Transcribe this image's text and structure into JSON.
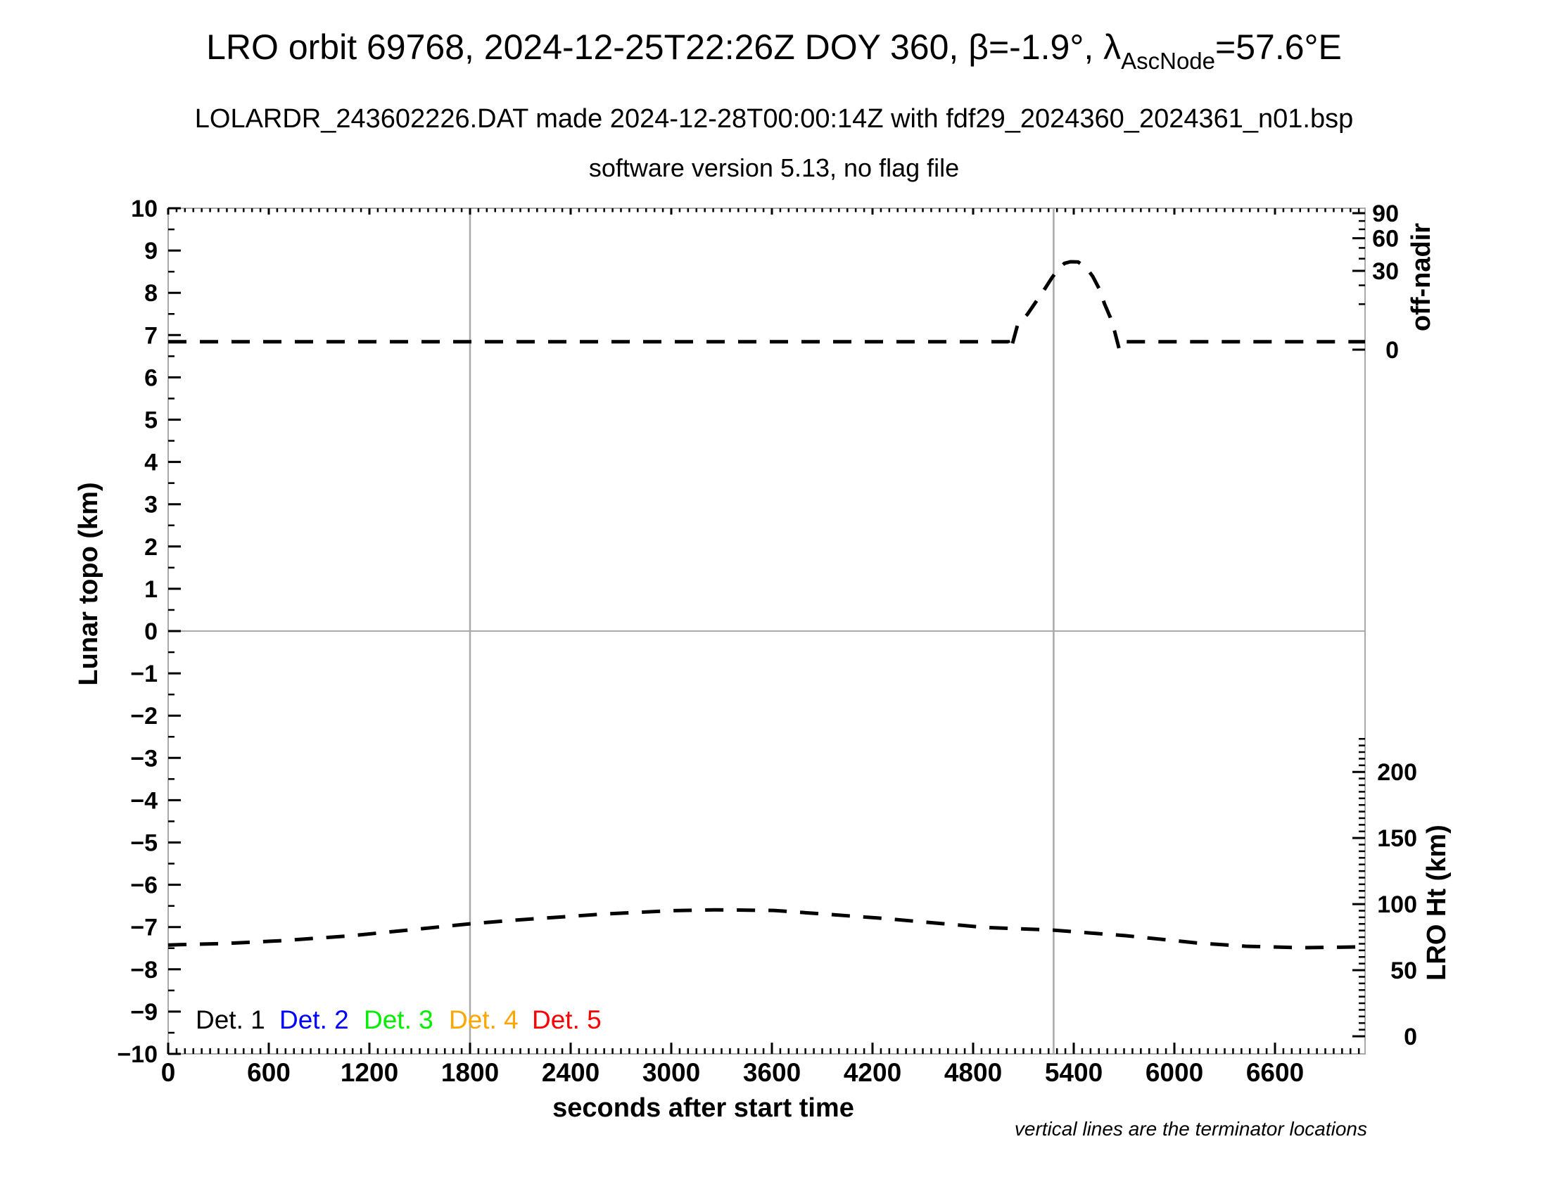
{
  "header": {
    "title_prefix": "LRO orbit 69768, 2024-12-25T22:26Z DOY 360, β=-1.9°, λ",
    "title_subscript": "AscNode",
    "title_suffix": "=57.6°E",
    "subtitle1": "LOLARDR_243602226.DAT made 2024-12-28T00:00:14Z with fdf29_2024360_2024361_n01.bsp",
    "subtitle2": "software version 5.13, no flag file"
  },
  "chart_data": {
    "type": "line",
    "title": "LRO orbit 69768, 2024-12-25T22:26Z DOY 360, β=-1.9°, λAscNode=57.6°E",
    "xlabel": "seconds after start time",
    "x_range": [
      0,
      7137
    ],
    "x_major_ticks": [
      0,
      600,
      1200,
      1800,
      2400,
      3000,
      3600,
      4200,
      4800,
      5400,
      6000,
      6600
    ],
    "x_minor_step_s": 50,
    "left_axis": {
      "label": "Lunar topo (km)",
      "range": [
        -10,
        10
      ],
      "major_step": 1,
      "minor_step": 0.5
    },
    "right_axis_off_nadir": {
      "label": "off-nadir",
      "tick_values_deg": [
        90,
        60,
        30,
        0
      ],
      "minor_step_deg": 10,
      "max_deg": 90,
      "scale": "sqrt-of-angle"
    },
    "right_axis_lro_ht": {
      "label": "LRO Ht (km)",
      "tick_values_km": [
        200,
        150,
        100,
        50,
        0
      ],
      "minor_step_km": 5,
      "axis_top_km": 228
    },
    "grid": {
      "horizontal_line_at_topo": 0,
      "vertical_terminator_lines_s": [
        1800,
        5280
      ]
    },
    "series": [
      {
        "name": "off-nadir angle",
        "unit": "deg",
        "axis": "off-nadir",
        "color": "#000000",
        "dashed": true,
        "points": [
          [
            0,
            0.3
          ],
          [
            600,
            0.3
          ],
          [
            1200,
            0.3
          ],
          [
            1800,
            0.3
          ],
          [
            2400,
            0.3
          ],
          [
            3000,
            0.3
          ],
          [
            3600,
            0.3
          ],
          [
            4200,
            0.3
          ],
          [
            4800,
            0.3
          ],
          [
            5010,
            0.3
          ],
          [
            5025,
            0.0
          ],
          [
            5065,
            3.0
          ],
          [
            5123,
            6.0
          ],
          [
            5165,
            10.0
          ],
          [
            5215,
            16.0
          ],
          [
            5270,
            25.0
          ],
          [
            5312,
            32.0
          ],
          [
            5345,
            36.0
          ],
          [
            5379,
            37.3
          ],
          [
            5425,
            37.2
          ],
          [
            5471,
            33.0
          ],
          [
            5513,
            26.0
          ],
          [
            5551,
            18.0
          ],
          [
            5584,
            10.0
          ],
          [
            5618,
            5.0
          ],
          [
            5643,
            1.7
          ],
          [
            5672,
            0.0
          ],
          [
            5700,
            0.3
          ],
          [
            6000,
            0.3
          ],
          [
            6600,
            0.3
          ],
          [
            7137,
            0.3
          ]
        ]
      },
      {
        "name": "LRO height",
        "unit": "km",
        "axis": "LRO Ht (km)",
        "color": "#000000",
        "dashed": true,
        "points": [
          [
            0,
            69.1
          ],
          [
            340,
            70.2
          ],
          [
            676,
            72.3
          ],
          [
            1095,
            76.1
          ],
          [
            1515,
            81.4
          ],
          [
            1800,
            85.1
          ],
          [
            2060,
            87.8
          ],
          [
            2600,
            92.5
          ],
          [
            3000,
            95.0
          ],
          [
            3256,
            95.7
          ],
          [
            3612,
            95.2
          ],
          [
            4242,
            89.4
          ],
          [
            4871,
            82.4
          ],
          [
            5279,
            80.3
          ],
          [
            5711,
            76.1
          ],
          [
            6131,
            70.7
          ],
          [
            6425,
            68.1
          ],
          [
            6760,
            67.0
          ],
          [
            7095,
            67.6
          ],
          [
            7137,
            67.7
          ]
        ]
      }
    ],
    "legend": [
      {
        "label": "Det. 1",
        "color": "#000000"
      },
      {
        "label": "Det. 2",
        "color": "#0000ff"
      },
      {
        "label": "Det. 3",
        "color": "#00ee00"
      },
      {
        "label": "Det. 4",
        "color": "#ffa500"
      },
      {
        "label": "Det. 5",
        "color": "#ff0000"
      }
    ],
    "footnote": "vertical lines are the terminator locations",
    "colors": {
      "frame": "#a9a9a9",
      "gridlines": "#a9a9a9",
      "ticks": "#000000",
      "curves": "#000000"
    }
  }
}
